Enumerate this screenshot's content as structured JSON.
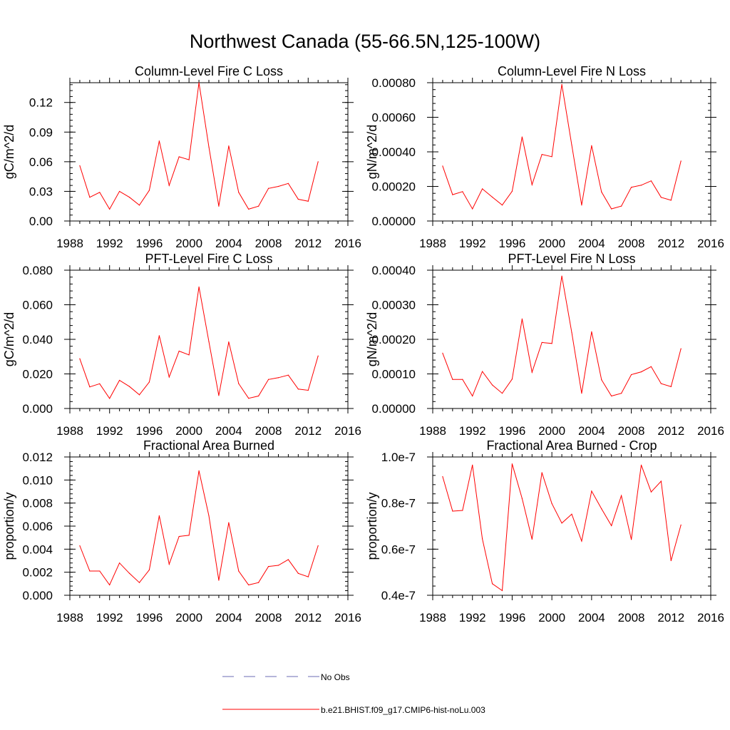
{
  "figure_title": "Northwest Canada (55-66.5N,125-100W)",
  "legend": {
    "entries": [
      {
        "label": "No Obs",
        "color": "#6b6bb5",
        "style": "dashed"
      },
      {
        "label": "b.e21.BHIST.f09_g17.CMIP6-hist-noLu.003",
        "color": "#ff0000",
        "style": "solid"
      }
    ]
  },
  "chart_data": [
    {
      "type": "line",
      "title": "Column-Level Fire C Loss",
      "ylabel": "gC/m^2/d",
      "xlim": [
        1988,
        2016
      ],
      "xticks": [
        "1988",
        "1992",
        "1996",
        "2000",
        "2004",
        "2008",
        "2012",
        "2016"
      ],
      "ylim": [
        0,
        0.14
      ],
      "yticks": [
        0,
        0.03,
        0.06,
        0.09,
        0.12
      ],
      "ytick_labels": [
        "0.00",
        "0.03",
        "0.06",
        "0.09",
        "0.12"
      ],
      "x": [
        1989,
        1990,
        1991,
        1992,
        1993,
        1994,
        1995,
        1996,
        1997,
        1998,
        1999,
        2000,
        2001,
        2002,
        2003,
        2004,
        2005,
        2006,
        2007,
        2008,
        2009,
        2010,
        2011,
        2012,
        2013
      ],
      "series": [
        {
          "name": "b.e21.BHIST.f09_g17.CMIP6-hist-noLu.003",
          "color": "#ff0000",
          "values": [
            0.056,
            0.024,
            0.029,
            0.012,
            0.03,
            0.024,
            0.016,
            0.031,
            0.081,
            0.036,
            0.065,
            0.062,
            0.14,
            0.075,
            0.015,
            0.076,
            0.029,
            0.012,
            0.015,
            0.033,
            0.035,
            0.038,
            0.022,
            0.02,
            0.06
          ]
        }
      ]
    },
    {
      "type": "line",
      "title": "Column-Level Fire N Loss",
      "ylabel": "gN/m^2/d",
      "xlim": [
        1988,
        2016
      ],
      "xticks": [
        "1988",
        "1992",
        "1996",
        "2000",
        "2004",
        "2008",
        "2012",
        "2016"
      ],
      "ylim": [
        0,
        0.0008
      ],
      "yticks": [
        0,
        0.0002,
        0.0004,
        0.0006,
        0.0008
      ],
      "ytick_labels": [
        "0.00000",
        "0.00020",
        "0.00040",
        "0.00060",
        "0.00080"
      ],
      "x": [
        1989,
        1990,
        1991,
        1992,
        1993,
        1994,
        1995,
        1996,
        1997,
        1998,
        1999,
        2000,
        2001,
        2002,
        2003,
        2004,
        2005,
        2006,
        2007,
        2008,
        2009,
        2010,
        2011,
        2012,
        2013
      ],
      "series": [
        {
          "name": "b.e21.BHIST.f09_g17.CMIP6-hist-noLu.003",
          "color": "#ff0000",
          "values": [
            0.000318,
            0.000152,
            0.00017,
            7e-05,
            0.000186,
            0.000138,
            9.2e-05,
            0.000172,
            0.000486,
            0.00021,
            0.000385,
            0.000372,
            0.00079,
            0.00044,
            9.2e-05,
            0.000436,
            0.000168,
            7e-05,
            8.6e-05,
            0.000195,
            0.000207,
            0.000232,
            0.000137,
            0.00012,
            0.000347
          ]
        }
      ]
    },
    {
      "type": "line",
      "title": "PFT-Level Fire C Loss",
      "ylabel": "gC/m^2/d",
      "xlim": [
        1988,
        2016
      ],
      "xticks": [
        "1988",
        "1992",
        "1996",
        "2000",
        "2004",
        "2008",
        "2012",
        "2016"
      ],
      "ylim": [
        0,
        0.08
      ],
      "yticks": [
        0,
        0.02,
        0.04,
        0.06,
        0.08
      ],
      "ytick_labels": [
        "0.000",
        "0.020",
        "0.040",
        "0.060",
        "0.080"
      ],
      "x": [
        1989,
        1990,
        1991,
        1992,
        1993,
        1994,
        1995,
        1996,
        1997,
        1998,
        1999,
        2000,
        2001,
        2002,
        2003,
        2004,
        2005,
        2006,
        2007,
        2008,
        2009,
        2010,
        2011,
        2012,
        2013
      ],
      "series": [
        {
          "name": "b.e21.BHIST.f09_g17.CMIP6-hist-noLu.003",
          "color": "#ff0000",
          "values": [
            0.0288,
            0.0125,
            0.0143,
            0.0058,
            0.0163,
            0.0127,
            0.0079,
            0.0153,
            0.0421,
            0.0182,
            0.0332,
            0.031,
            0.0703,
            0.0387,
            0.0075,
            0.0385,
            0.0144,
            0.0059,
            0.0072,
            0.0168,
            0.0178,
            0.0193,
            0.0112,
            0.0105,
            0.0304
          ]
        }
      ]
    },
    {
      "type": "line",
      "title": "PFT-Level Fire N Loss",
      "ylabel": "gN/m^2/d",
      "xlim": [
        1988,
        2016
      ],
      "xticks": [
        "1988",
        "1992",
        "1996",
        "2000",
        "2004",
        "2008",
        "2012",
        "2016"
      ],
      "ylim": [
        0,
        0.0004
      ],
      "yticks": [
        0,
        0.0001,
        0.0002,
        0.0003,
        0.0004
      ],
      "ytick_labels": [
        "0.00000",
        "0.00010",
        "0.00020",
        "0.00030",
        "0.00040"
      ],
      "x": [
        1989,
        1990,
        1991,
        1992,
        1993,
        1994,
        1995,
        1996,
        1997,
        1998,
        1999,
        2000,
        2001,
        2002,
        2003,
        2004,
        2005,
        2006,
        2007,
        2008,
        2009,
        2010,
        2011,
        2012,
        2013
      ],
      "series": [
        {
          "name": "b.e21.BHIST.f09_g17.CMIP6-hist-noLu.003",
          "color": "#ff0000",
          "values": [
            0.00016,
            8.4e-05,
            8.4e-05,
            3.6e-05,
            0.000107,
            6.8e-05,
            4.4e-05,
            8.5e-05,
            0.000259,
            0.000105,
            0.000191,
            0.000188,
            0.000383,
            0.00022,
            4.4e-05,
            0.000222,
            8.3e-05,
            3.6e-05,
            4.4e-05,
            9.8e-05,
            0.000106,
            0.000121,
            7.2e-05,
            6.3e-05,
            0.000173
          ]
        }
      ]
    },
    {
      "type": "line",
      "title": "Fractional Area Burned",
      "ylabel": "proportion/y",
      "xlim": [
        1988,
        2016
      ],
      "xticks": [
        "1988",
        "1992",
        "1996",
        "2000",
        "2004",
        "2008",
        "2012",
        "2016"
      ],
      "ylim": [
        0,
        0.012
      ],
      "yticks": [
        0,
        0.002,
        0.004,
        0.006,
        0.008,
        0.01,
        0.012
      ],
      "ytick_labels": [
        "0.000",
        "0.002",
        "0.004",
        "0.006",
        "0.008",
        "0.010",
        "0.012"
      ],
      "x": [
        1989,
        1990,
        1991,
        1992,
        1993,
        1994,
        1995,
        1996,
        1997,
        1998,
        1999,
        2000,
        2001,
        2002,
        2003,
        2004,
        2005,
        2006,
        2007,
        2008,
        2009,
        2010,
        2011,
        2012,
        2013
      ],
      "series": [
        {
          "name": "b.e21.BHIST.f09_g17.CMIP6-hist-noLu.003",
          "color": "#ff0000",
          "values": [
            0.0043,
            0.0021,
            0.0021,
            0.0009,
            0.0028,
            0.0019,
            0.0011,
            0.0022,
            0.0069,
            0.0027,
            0.0051,
            0.0052,
            0.0108,
            0.0069,
            0.0013,
            0.0063,
            0.0021,
            0.0009,
            0.0011,
            0.0025,
            0.0026,
            0.0031,
            0.0019,
            0.0016,
            0.0043
          ]
        }
      ]
    },
    {
      "type": "line",
      "title": "Fractional Area Burned - Crop",
      "ylabel": "proportion/y",
      "xlim": [
        1988,
        2016
      ],
      "xticks": [
        "1988",
        "1992",
        "1996",
        "2000",
        "2004",
        "2008",
        "2012",
        "2016"
      ],
      "ylim": [
        4e-08,
        1e-07
      ],
      "yticks": [
        4e-08,
        6e-08,
        8e-08,
        1e-07
      ],
      "ytick_labels": [
        "0.4e-7",
        "0.6e-7",
        "0.8e-7",
        "1.0e-7"
      ],
      "x": [
        1989,
        1990,
        1991,
        1992,
        1993,
        1994,
        1995,
        1996,
        1997,
        1998,
        1999,
        2000,
        2001,
        2002,
        2003,
        2004,
        2005,
        2006,
        2007,
        2008,
        2009,
        2010,
        2011,
        2012,
        2013
      ],
      "series": [
        {
          "name": "b.e21.BHIST.f09_g17.CMIP6-hist-noLu.003",
          "color": "#ff0000",
          "values": [
            9.15e-08,
            7.65e-08,
            7.68e-08,
            9.65e-08,
            6.45e-08,
            4.5e-08,
            4.2e-08,
            9.7e-08,
            8.2e-08,
            6.43e-08,
            9.32e-08,
            7.98e-08,
            7.13e-08,
            7.52e-08,
            6.35e-08,
            8.52e-08,
            7.75e-08,
            7.02e-08,
            8.32e-08,
            6.42e-08,
            9.65e-08,
            8.48e-08,
            8.95e-08,
            5.5e-08,
            7.05e-08
          ]
        }
      ]
    }
  ]
}
